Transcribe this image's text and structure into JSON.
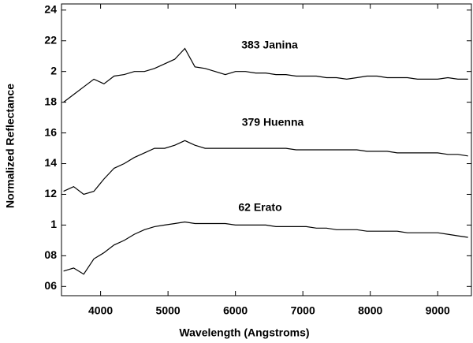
{
  "chart_data": {
    "type": "line",
    "xlabel": "Wavelength (Angstroms)",
    "ylabel": "Normalized Reflectance",
    "x": [
      3450,
      3600,
      3750,
      3900,
      4050,
      4200,
      4350,
      4500,
      4650,
      4800,
      4950,
      5100,
      5250,
      5400,
      5550,
      5700,
      5850,
      6000,
      6150,
      6300,
      6450,
      6600,
      6750,
      6900,
      7050,
      7200,
      7350,
      7500,
      7650,
      7800,
      7950,
      8100,
      8250,
      8400,
      8550,
      8700,
      8850,
      9000,
      9150,
      9300,
      9450
    ],
    "series": [
      {
        "name": "383 Janina",
        "color": "#000000",
        "values": [
          1.8,
          1.85,
          1.9,
          1.95,
          1.92,
          1.97,
          1.98,
          2.0,
          2.0,
          2.02,
          2.05,
          2.08,
          2.15,
          2.03,
          2.02,
          2.0,
          1.98,
          2.0,
          2.0,
          1.99,
          1.99,
          1.98,
          1.98,
          1.97,
          1.97,
          1.97,
          1.96,
          1.96,
          1.95,
          1.96,
          1.97,
          1.97,
          1.96,
          1.96,
          1.96,
          1.95,
          1.95,
          1.95,
          1.96,
          1.95,
          1.95
        ]
      },
      {
        "name": "379 Huenna",
        "color": "#000000",
        "values": [
          1.22,
          1.25,
          1.2,
          1.22,
          1.3,
          1.37,
          1.4,
          1.44,
          1.47,
          1.5,
          1.5,
          1.52,
          1.55,
          1.52,
          1.5,
          1.5,
          1.5,
          1.5,
          1.5,
          1.5,
          1.5,
          1.5,
          1.5,
          1.49,
          1.49,
          1.49,
          1.49,
          1.49,
          1.49,
          1.49,
          1.48,
          1.48,
          1.48,
          1.47,
          1.47,
          1.47,
          1.47,
          1.47,
          1.46,
          1.46,
          1.45
        ]
      },
      {
        "name": "62 Erato",
        "color": "#000000",
        "values": [
          0.7,
          0.72,
          0.68,
          0.78,
          0.82,
          0.87,
          0.9,
          0.94,
          0.97,
          0.99,
          1.0,
          1.01,
          1.02,
          1.01,
          1.01,
          1.01,
          1.01,
          1.0,
          1.0,
          1.0,
          1.0,
          0.99,
          0.99,
          0.99,
          0.99,
          0.98,
          0.98,
          0.97,
          0.97,
          0.97,
          0.96,
          0.96,
          0.96,
          0.96,
          0.95,
          0.95,
          0.95,
          0.95,
          0.94,
          0.93,
          0.92
        ]
      }
    ],
    "xlim": [
      3420,
      9500
    ],
    "ylim": [
      0.54,
      2.44
    ],
    "xticks": [
      4000,
      5000,
      6000,
      7000,
      8000,
      9000
    ],
    "yticks": [
      {
        "value": 0.6,
        "label": "06"
      },
      {
        "value": 0.8,
        "label": "08"
      },
      1,
      {
        "value": 1.2,
        "label": "12"
      },
      {
        "value": 1.4,
        "label": "14"
      },
      {
        "value": 1.6,
        "label": "16"
      },
      {
        "value": 1.8,
        "label": "18"
      },
      2,
      {
        "value": 2.2,
        "label": "22"
      },
      {
        "value": 2.4,
        "label": "24"
      }
    ]
  }
}
